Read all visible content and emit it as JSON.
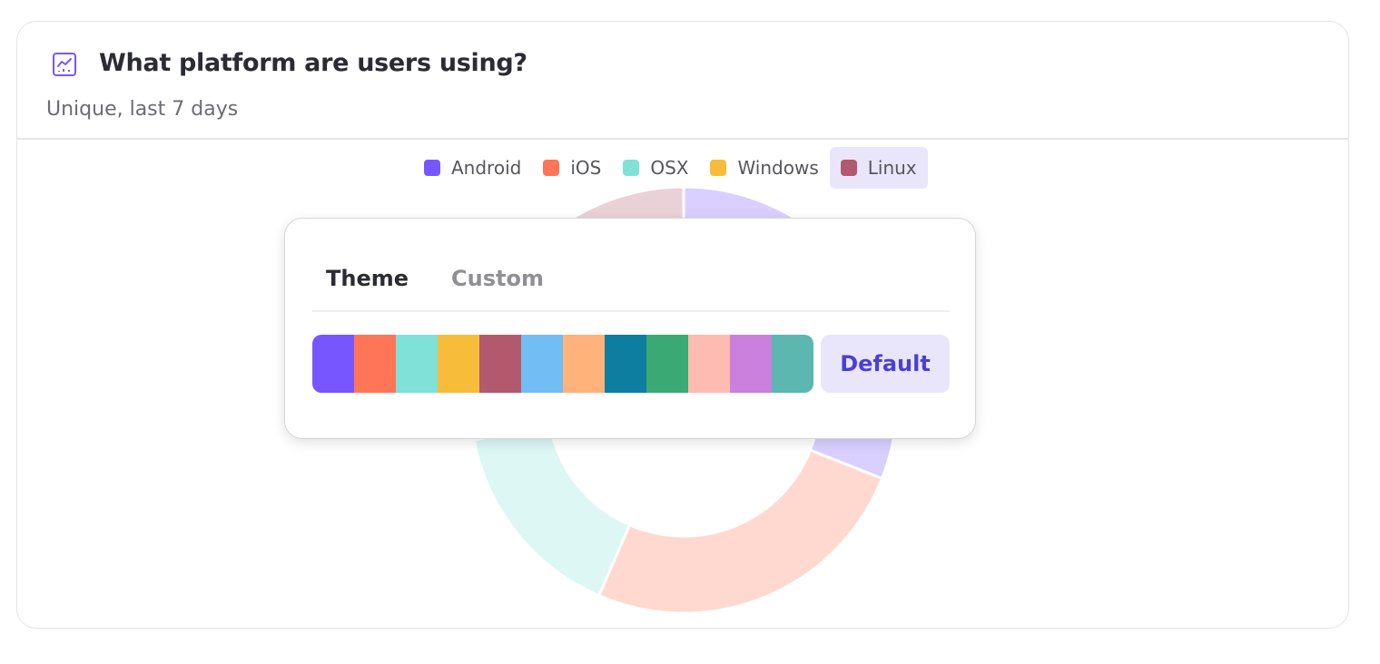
{
  "card": {
    "title": "What platform are users using?",
    "subtitle": "Unique, last 7 days",
    "icon": "line-chart-icon",
    "accent": "#7856ff"
  },
  "chart_data": {
    "type": "pie",
    "variant": "donut",
    "legend_position": "top",
    "series": [
      {
        "name": "Android",
        "color": "#7856ff",
        "value": 31
      },
      {
        "name": "iOS",
        "color": "#ff7557",
        "value": 25.5
      },
      {
        "name": "OSX",
        "color": "#80e1d9",
        "value": 15.5
      },
      {
        "name": "Windows",
        "color": "#f8bc3b",
        "value": 7
      },
      {
        "name": "Linux",
        "color": "#b2596e",
        "value": 21
      }
    ],
    "highlighted": "Linux"
  },
  "popover": {
    "tabs": [
      {
        "label": "Theme",
        "active": true
      },
      {
        "label": "Custom",
        "active": false
      }
    ],
    "palette": [
      "#7856ff",
      "#ff7557",
      "#80e1d9",
      "#f8bc3b",
      "#b2596e",
      "#72bef4",
      "#ffb27a",
      "#0d7ea0",
      "#3ba974",
      "#febbb2",
      "#ca80dc",
      "#5bb7af"
    ],
    "default_label": "Default"
  }
}
